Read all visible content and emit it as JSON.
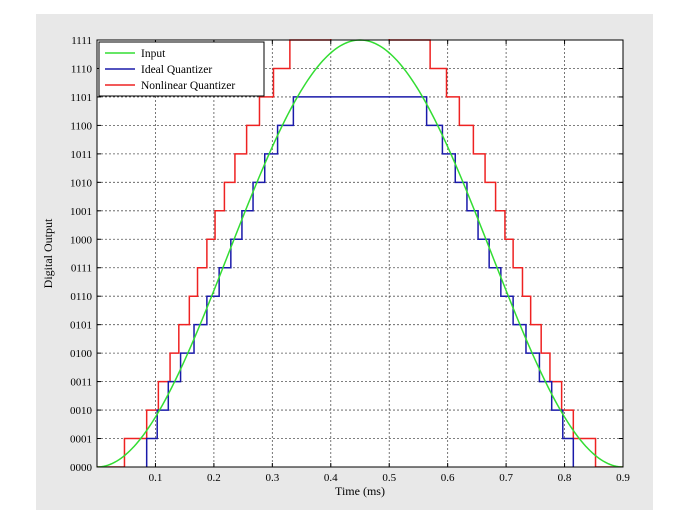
{
  "chart_data": {
    "type": "line",
    "title": "",
    "xlabel": "Time (ms)",
    "ylabel": "Digital Output",
    "xlim": [
      0,
      0.9
    ],
    "ylim": [
      0,
      15
    ],
    "grid": true,
    "legend_position": "top-left",
    "x_ticks": [
      {
        "value": 0.1,
        "label": "0.1"
      },
      {
        "value": 0.2,
        "label": "0.2"
      },
      {
        "value": 0.3,
        "label": "0.3"
      },
      {
        "value": 0.4,
        "label": "0.4"
      },
      {
        "value": 0.5,
        "label": "0.5"
      },
      {
        "value": 0.6,
        "label": "0.6"
      },
      {
        "value": 0.7,
        "label": "0.7"
      },
      {
        "value": 0.8,
        "label": "0.8"
      },
      {
        "value": 0.9,
        "label": "0.9"
      }
    ],
    "y_ticks": [
      "0000",
      "0001",
      "0010",
      "0011",
      "0100",
      "0101",
      "0110",
      "0111",
      "1000",
      "1001",
      "1010",
      "1011",
      "1100",
      "1101",
      "1110",
      "1111"
    ],
    "series": [
      {
        "name": "Input",
        "color": "#33dd33",
        "kind": "curve",
        "peak_x": 0.45,
        "peak_y": 15,
        "x_start": 0,
        "x_end": 0.9
      },
      {
        "name": "Ideal Quantizer",
        "color": "#1a1aaa",
        "kind": "step",
        "x_start": 0.085,
        "x_end": 0.815,
        "up_transitions": [
          0.085,
          0.103,
          0.122,
          0.143,
          0.166,
          0.188,
          0.209,
          0.229,
          0.248,
          0.267,
          0.287,
          0.309,
          0.336
        ],
        "down_transitions": [
          0.564,
          0.591,
          0.613,
          0.633,
          0.652,
          0.671,
          0.691,
          0.712,
          0.734,
          0.757,
          0.778,
          0.797,
          0.815
        ]
      },
      {
        "name": "Nonlinear Quantizer",
        "color": "#ee2222",
        "kind": "step",
        "x_start": 0,
        "x_end": 0.9,
        "up_transitions": [
          0.047,
          0.085,
          0.105,
          0.125,
          0.14,
          0.158,
          0.172,
          0.188,
          0.202,
          0.218,
          0.236,
          0.256,
          0.278,
          0.302,
          0.33,
          0.4
        ],
        "down_transitions": [
          0.5,
          0.57,
          0.598,
          0.62,
          0.644,
          0.664,
          0.682,
          0.698,
          0.712,
          0.728,
          0.742,
          0.76,
          0.775,
          0.795,
          0.815,
          0.853
        ]
      }
    ]
  }
}
